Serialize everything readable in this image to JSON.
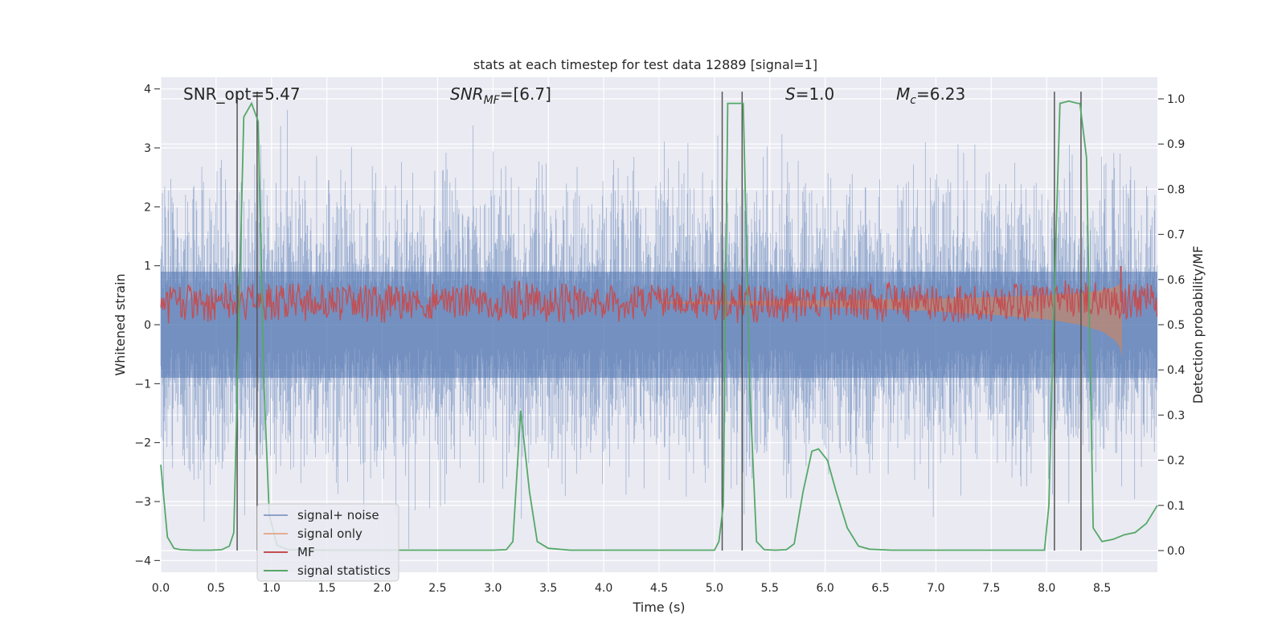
{
  "chart_data": {
    "type": "line",
    "title": "stats at each timestep for test data 12889 [signal=1]",
    "xlabel": "Time (s)",
    "ylabel": "Whitened strain",
    "ylabel_right": "Detection probability/MF",
    "xlim": [
      0.0,
      9.0
    ],
    "ylim": [
      -4.2,
      4.2
    ],
    "ylim_right": [
      -0.048,
      1.048
    ],
    "x_ticks": [
      "0.0",
      "0.5",
      "1.0",
      "1.5",
      "2.0",
      "2.5",
      "3.0",
      "3.5",
      "4.0",
      "4.5",
      "5.0",
      "5.5",
      "6.0",
      "6.5",
      "7.0",
      "7.5",
      "8.0",
      "8.5"
    ],
    "y_ticks": [
      "4",
      "3",
      "2",
      "1",
      "0",
      "−1",
      "−2",
      "−3",
      "−4"
    ],
    "y_ticks_right": [
      "1.0",
      "0.9",
      "0.8",
      "0.7",
      "0.6",
      "0.5",
      "0.4",
      "0.3",
      "0.2",
      "0.1",
      "0.0"
    ],
    "grid": true,
    "legend_position": "lower-left",
    "colors": {
      "background": "#eaeaf2",
      "grid": "#ffffff",
      "noise": "#4c72b0",
      "signal": "#dd8452",
      "mf": "#c44e52",
      "stats": "#55a868",
      "vline": "#555555"
    },
    "annotations": {
      "snr_opt": "SNR_opt=5.47",
      "snr_mf_main": "SNR",
      "snr_mf_sub": "MF",
      "snr_mf_value": "=[6.7]",
      "s_label": "S",
      "s_value": "=1.0",
      "mc_main": "M",
      "mc_sub": "c",
      "mc_value": "=6.23"
    },
    "vertical_lines_x": [
      0.69,
      0.87,
      5.07,
      5.25,
      8.07,
      8.31
    ],
    "series": [
      {
        "name": "signal+ noise",
        "role": "noise",
        "axis": "left",
        "envelope_x": [
          0.0,
          9.0
        ],
        "range_y": [
          -3.8,
          3.8
        ]
      },
      {
        "name": "signal only",
        "role": "signal",
        "axis": "right",
        "x": [
          4.5,
          5.0,
          5.5,
          6.0,
          6.5,
          7.0,
          7.5,
          8.0,
          8.3,
          8.5,
          8.62,
          8.66,
          8.68
        ],
        "envelope": [
          0.003,
          0.005,
          0.008,
          0.011,
          0.015,
          0.02,
          0.028,
          0.038,
          0.05,
          0.065,
          0.085,
          0.1,
          0.12
        ]
      },
      {
        "name": "MF",
        "role": "mf",
        "axis": "right",
        "baseline": 0.55,
        "noise_amplitude": 0.04,
        "peak": {
          "x": 8.67,
          "y": 0.63
        }
      },
      {
        "name": "signal statistics",
        "role": "stats",
        "axis": "right",
        "x": [
          0.0,
          0.06,
          0.12,
          0.18,
          0.3,
          0.45,
          0.55,
          0.62,
          0.66,
          0.7,
          0.75,
          0.82,
          0.88,
          0.93,
          0.98,
          1.05,
          1.15,
          1.5,
          2.5,
          3.0,
          3.12,
          3.18,
          3.25,
          3.33,
          3.4,
          3.5,
          3.7,
          4.5,
          4.9,
          5.0,
          5.04,
          5.08,
          5.12,
          5.2,
          5.26,
          5.32,
          5.38,
          5.45,
          5.55,
          5.65,
          5.72,
          5.8,
          5.88,
          5.94,
          6.02,
          6.1,
          6.2,
          6.3,
          6.4,
          6.6,
          7.0,
          7.5,
          7.98,
          8.02,
          8.06,
          8.12,
          8.2,
          8.28,
          8.3,
          8.36,
          8.42,
          8.5,
          8.6,
          8.7,
          8.8,
          8.9,
          9.0
        ],
        "y": [
          0.19,
          0.03,
          0.005,
          0.002,
          0.001,
          0.001,
          0.002,
          0.01,
          0.04,
          0.45,
          0.96,
          0.99,
          0.95,
          0.38,
          0.08,
          0.012,
          0.002,
          0.001,
          0.001,
          0.001,
          0.002,
          0.02,
          0.31,
          0.13,
          0.02,
          0.005,
          0.001,
          0.001,
          0.001,
          0.001,
          0.02,
          0.1,
          0.99,
          0.99,
          0.99,
          0.35,
          0.02,
          0.002,
          0.001,
          0.002,
          0.015,
          0.13,
          0.22,
          0.225,
          0.2,
          0.13,
          0.05,
          0.01,
          0.003,
          0.001,
          0.001,
          0.001,
          0.001,
          0.1,
          0.5,
          0.99,
          0.995,
          0.99,
          0.99,
          0.87,
          0.05,
          0.02,
          0.025,
          0.035,
          0.04,
          0.06,
          0.1
        ]
      }
    ]
  }
}
